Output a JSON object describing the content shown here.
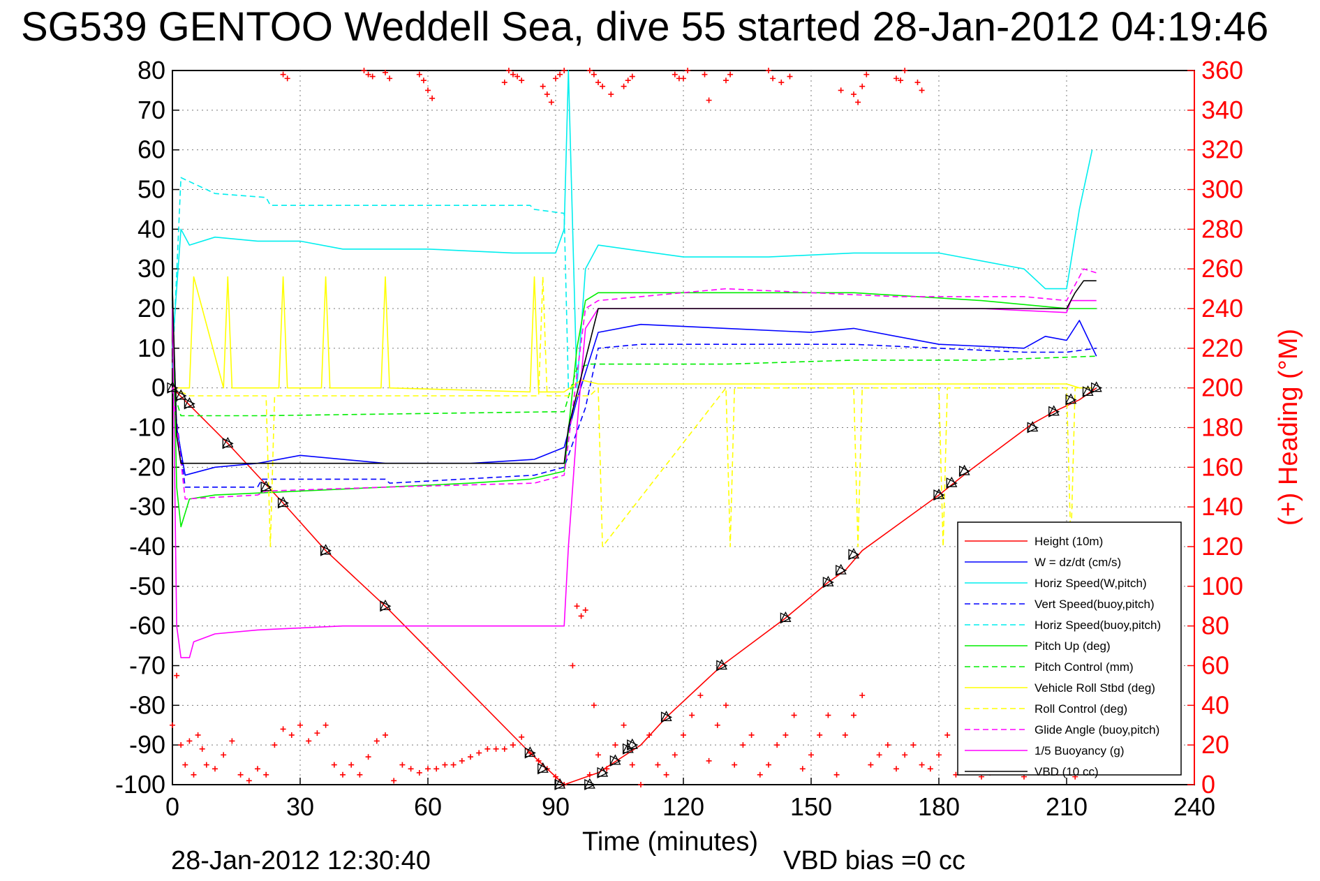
{
  "chart_data": {
    "type": "line",
    "title": "SG539 GENTOO Weddell Sea, dive 55 started 28-Jan-2012 04:19:46",
    "xlabel": "Time (minutes)",
    "ylabel": "",
    "y2label": "(+) Heading (°M)",
    "footer_date": "28-Jan-2012 12:30:40",
    "footer_vbd": "VBD bias =0 cc",
    "xlim": [
      0,
      240
    ],
    "ylim": [
      -100,
      80
    ],
    "y2lim": [
      0,
      360
    ],
    "grid": true,
    "legend_position": "bottom-right",
    "x_ticks": [
      "0",
      "30",
      "60",
      "90",
      "120",
      "150",
      "180",
      "210",
      "240"
    ],
    "y_ticks": [
      "80",
      "70",
      "60",
      "50",
      "40",
      "30",
      "20",
      "10",
      "0",
      "-10",
      "-20",
      "-30",
      "-40",
      "-50",
      "-60",
      "-70",
      "-80",
      "-90",
      "-100"
    ],
    "y2_ticks": [
      "360",
      "340",
      "320",
      "300",
      "280",
      "260",
      "240",
      "220",
      "200",
      "180",
      "160",
      "140",
      "120",
      "100",
      "80",
      "60",
      "40",
      "20",
      "0"
    ],
    "series": [
      {
        "name": "Height (10m)",
        "color": "#ff0000",
        "style": "solid",
        "x": [
          0,
          13,
          26,
          36,
          50,
          84,
          92,
          100,
          110,
          116,
          129,
          144,
          154,
          158,
          162,
          180,
          187,
          202,
          207,
          213,
          217
        ],
        "y": [
          0,
          -14,
          -29,
          -41,
          -55,
          -92,
          -100,
          -97,
          -90,
          -83,
          -70,
          -58,
          -49,
          -46,
          -41,
          -27,
          -21,
          -9,
          -6,
          -3,
          0
        ]
      },
      {
        "name": "W = dz/dt (cm/s)",
        "color": "#0000ff",
        "style": "solid",
        "x": [
          0,
          1,
          3,
          10,
          20,
          30,
          50,
          70,
          85,
          92,
          95,
          100,
          110,
          130,
          150,
          160,
          180,
          200,
          205,
          210,
          213,
          217
        ],
        "y": [
          22,
          -10,
          -22,
          -20,
          -19,
          -17,
          -19,
          -19,
          -18,
          -15,
          -3,
          14,
          16,
          15,
          14,
          15,
          11,
          10,
          13,
          12,
          17,
          8
        ]
      },
      {
        "name": "Horiz Speed(W,pitch)",
        "color": "#00eeee",
        "style": "solid",
        "x": [
          0,
          2,
          4,
          10,
          20,
          30,
          40,
          60,
          80,
          90,
          92,
          93,
          95,
          97,
          100,
          120,
          140,
          160,
          180,
          200,
          205,
          210,
          213,
          216
        ],
        "y": [
          10,
          40,
          36,
          38,
          37,
          37,
          35,
          35,
          34,
          34,
          40,
          80,
          0,
          30,
          36,
          33,
          33,
          34,
          34,
          30,
          25,
          25,
          45,
          60
        ]
      },
      {
        "name": "Vert Speed(buoy,pitch)",
        "color": "#0000ff",
        "style": "dashed",
        "x": [
          0,
          3,
          20,
          21,
          50,
          51,
          85,
          92,
          97,
          100,
          110,
          160,
          200,
          210,
          217
        ],
        "y": [
          0,
          -25,
          -25,
          -23,
          -23,
          -24,
          -22,
          -20,
          -5,
          10,
          11,
          11,
          9,
          9,
          10
        ]
      },
      {
        "name": "Horiz Speed(buoy,pitch)",
        "color": "#00eeee",
        "style": "dashed",
        "x": [
          0,
          2,
          10,
          22,
          23,
          50,
          84,
          85,
          92,
          93
        ],
        "y": [
          5,
          53,
          49,
          48,
          46,
          46,
          46,
          45,
          44,
          0
        ]
      },
      {
        "name": "Pitch Up (deg)",
        "color": "#00ee00",
        "style": "solid",
        "x": [
          0,
          1,
          2,
          4,
          10,
          30,
          50,
          70,
          84,
          92,
          95,
          97,
          100,
          130,
          160,
          190,
          210,
          217
        ],
        "y": [
          25,
          -25,
          -35,
          -28,
          -27,
          -26,
          -25,
          -24,
          -23,
          -21,
          10,
          22,
          24,
          24,
          24,
          22,
          20,
          20
        ]
      },
      {
        "name": "Pitch Control (mm)",
        "color": "#00ee00",
        "style": "dashed",
        "x": [
          0,
          2,
          20,
          21,
          90,
          92,
          95,
          98,
          130,
          160,
          190,
          217
        ],
        "y": [
          0,
          -7,
          -7,
          -7,
          -6,
          -6,
          5,
          6,
          6,
          7,
          7,
          8
        ]
      },
      {
        "name": "Vehicle Roll Stbd (deg)",
        "color": "#ffff00",
        "style": "solid",
        "x": [
          0,
          4,
          5,
          12,
          13,
          14,
          25,
          26,
          27,
          35,
          36,
          37,
          49,
          50,
          51,
          84,
          85,
          86,
          92,
          96,
          100,
          110,
          130,
          150,
          170,
          190,
          210,
          213,
          216
        ],
        "y": [
          0,
          0,
          28,
          0,
          28,
          0,
          0,
          28,
          0,
          0,
          28,
          0,
          0,
          28,
          0,
          -1,
          28,
          -1,
          -1,
          2,
          1,
          1,
          1,
          1,
          1,
          1,
          1,
          0,
          0
        ]
      },
      {
        "name": "Roll Control (deg)",
        "color": "#ffff00",
        "style": "dashed",
        "x": [
          0,
          4,
          5,
          22,
          23,
          24,
          86,
          87,
          88,
          90,
          98,
          100,
          101,
          130,
          131,
          132,
          160,
          161,
          162,
          180,
          181,
          182,
          210,
          211,
          212,
          216
        ],
        "y": [
          0,
          -2,
          -2,
          -2,
          -40,
          -2,
          -2,
          28,
          -2,
          -2,
          -2,
          0,
          -40,
          0,
          -40,
          0,
          0,
          -40,
          0,
          0,
          -40,
          0,
          0,
          -40,
          0,
          0
        ]
      },
      {
        "name": "Glide Angle (buoy,pitch)",
        "color": "#ff00ff",
        "style": "dashed",
        "x": [
          0,
          3,
          20,
          22,
          50,
          85,
          92,
          97,
          100,
          110,
          130,
          150,
          170,
          200,
          210,
          214,
          217
        ],
        "y": [
          0,
          -28,
          -27,
          -26,
          -25,
          -24,
          -22,
          20,
          22,
          23,
          25,
          24,
          23,
          23,
          22,
          30,
          29
        ]
      },
      {
        "name": "1/5 Buoyancy (g)",
        "color": "#ff00ff",
        "style": "solid",
        "x": [
          0,
          1,
          2,
          4,
          5,
          10,
          20,
          40,
          60,
          80,
          92,
          93,
          95,
          97,
          100,
          130,
          160,
          190,
          210,
          211,
          214,
          217
        ],
        "y": [
          20,
          -60,
          -68,
          -68,
          -64,
          -62,
          -61,
          -60,
          -60,
          -60,
          -60,
          -40,
          -10,
          15,
          20,
          20,
          20,
          20,
          19,
          22,
          22,
          22
        ]
      },
      {
        "name": "VBD (10 cc)",
        "color": "#000000",
        "style": "solid",
        "x": [
          0,
          1,
          2,
          92,
          93,
          100,
          210,
          211,
          212,
          214,
          217
        ],
        "y": [
          25,
          -12,
          -19,
          -19,
          -10,
          20,
          20,
          22,
          24,
          27,
          27
        ]
      }
    ],
    "heading_series": {
      "name": "Heading",
      "color": "#ff0000",
      "marker": "+",
      "axis": "right",
      "x": [
        0,
        1,
        2,
        3,
        4,
        5,
        6,
        7,
        8,
        10,
        12,
        14,
        16,
        18,
        20,
        22,
        24,
        26,
        28,
        30,
        32,
        34,
        36,
        38,
        40,
        42,
        44,
        46,
        48,
        50,
        52,
        54,
        56,
        58,
        60,
        62,
        64,
        66,
        68,
        70,
        72,
        74,
        76,
        78,
        80,
        82,
        84,
        86,
        88,
        90,
        92,
        94,
        95,
        96,
        97,
        98,
        99,
        100,
        102,
        104,
        106,
        108,
        110,
        112,
        114,
        116,
        118,
        120,
        122,
        124,
        126,
        128,
        130,
        132,
        134,
        136,
        138,
        140,
        142,
        144,
        146,
        148,
        150,
        152,
        154,
        156,
        158,
        160,
        162,
        164,
        166,
        168,
        170,
        172,
        174,
        176,
        178,
        180,
        182,
        184,
        186,
        188,
        190,
        192,
        194,
        196,
        198,
        200,
        202,
        204,
        206,
        208,
        210,
        212,
        214
      ],
      "y": [
        30,
        55,
        20,
        10,
        22,
        5,
        25,
        18,
        10,
        8,
        15,
        22,
        5,
        2,
        8,
        5,
        20,
        28,
        25,
        30,
        22,
        26,
        30,
        10,
        5,
        10,
        5,
        14,
        22,
        25,
        2,
        10,
        8,
        6,
        8,
        8,
        10,
        10,
        12,
        14,
        16,
        18,
        18,
        18,
        20,
        24,
        16,
        12,
        8,
        4,
        0,
        60,
        90,
        85,
        88,
        5,
        40,
        15,
        8,
        20,
        30,
        10,
        0,
        25,
        10,
        5,
        15,
        25,
        35,
        45,
        12,
        30,
        40,
        10,
        20,
        25,
        5,
        10,
        20,
        25,
        35,
        8,
        15,
        25,
        35,
        5,
        25,
        35,
        45,
        10,
        15,
        20,
        8,
        15,
        20,
        10,
        8,
        15,
        25,
        5,
        8,
        18,
        4,
        6,
        10,
        8,
        12,
        4,
        10,
        8,
        15,
        6,
        10,
        4,
        10
      ]
    },
    "heading_top_x": [
      26,
      27,
      45,
      46,
      47,
      50,
      51,
      58,
      59,
      60,
      61,
      78,
      79,
      80,
      81,
      82,
      87,
      88,
      89,
      90,
      91,
      92,
      98,
      99,
      100,
      101,
      103,
      106,
      107,
      108,
      118,
      119,
      120,
      121,
      125,
      126,
      130,
      131,
      140,
      141,
      143,
      145,
      157,
      160,
      161,
      162,
      163,
      170,
      171,
      172,
      175,
      176
    ],
    "heading_top_y": [
      358,
      356,
      360,
      358,
      357,
      359,
      356,
      358,
      355,
      350,
      346,
      354,
      360,
      358,
      357,
      355,
      352,
      348,
      344,
      356,
      358,
      360,
      360,
      358,
      354,
      352,
      348,
      352,
      355,
      357,
      358,
      356,
      356,
      360,
      358,
      345,
      355,
      358,
      360,
      356,
      354,
      357,
      350,
      348,
      344,
      352,
      358,
      356,
      355,
      360,
      354,
      350
    ],
    "markers": {
      "x": [
        0,
        2,
        4,
        13,
        22,
        26,
        36,
        50,
        84,
        87,
        91,
        98,
        101,
        104,
        107,
        108,
        116,
        129,
        144,
        154,
        157,
        160,
        180,
        183,
        186,
        202,
        207,
        211,
        215,
        217
      ],
      "y": [
        0,
        -2,
        -4,
        -14,
        -25,
        -29,
        -41,
        -55,
        -92,
        -96,
        -100,
        -100,
        -97,
        -94,
        -91,
        -90,
        -83,
        -70,
        -58,
        -49,
        -46,
        -42,
        -27,
        -24,
        -21,
        -10,
        -6,
        -3,
        -1,
        0
      ]
    }
  }
}
